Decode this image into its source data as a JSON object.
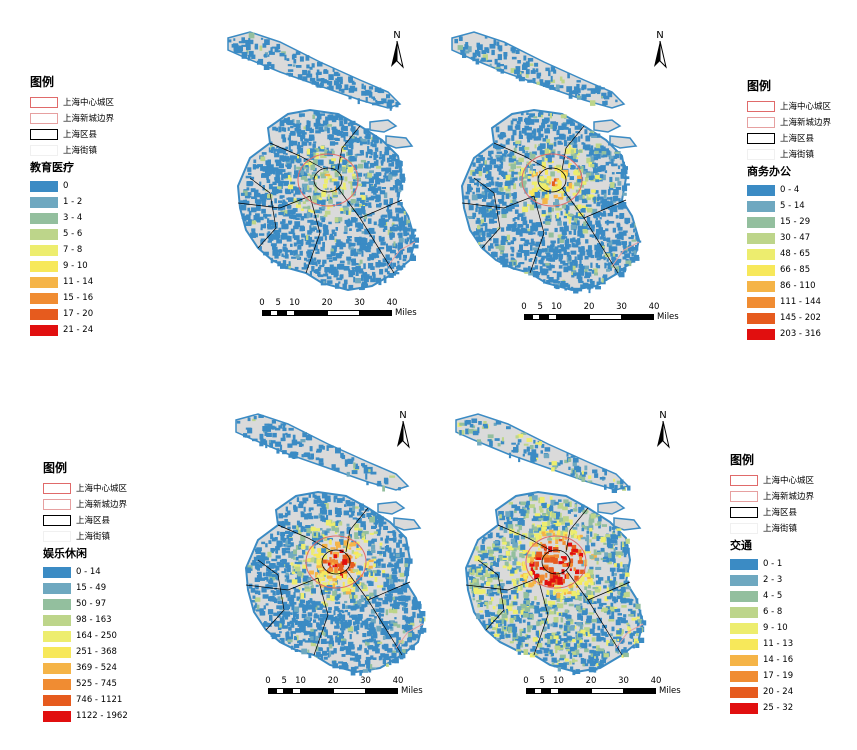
{
  "map_panels": [
    {
      "id": "education",
      "legend_title": "图例",
      "boundary_items": [
        "上海中心城区",
        "上海新城边界",
        "上海区县",
        "上海街镇"
      ],
      "layer_title": "教育医疗",
      "classes": [
        "0",
        "1 - 2",
        "3 - 4",
        "5 - 6",
        "7 - 8",
        "9 - 10",
        "11 - 14",
        "15 - 16",
        "17 - 20",
        "21 - 24"
      ],
      "north_label": "N",
      "scale_ticks": [
        "0",
        "5",
        "10",
        "20",
        "30",
        "40"
      ],
      "scale_unit": "Miles"
    },
    {
      "id": "business",
      "legend_title": "图例",
      "boundary_items": [
        "上海中心城区",
        "上海新城边界",
        "上海区县",
        "上海街镇"
      ],
      "layer_title": "商务办公",
      "classes": [
        "0 - 4",
        "5 - 14",
        "15 - 29",
        "30 - 47",
        "48 - 65",
        "66 - 85",
        "86 - 110",
        "111 - 144",
        "145 - 202",
        "203 - 316"
      ],
      "north_label": "N",
      "scale_ticks": [
        "0",
        "5",
        "10",
        "20",
        "30",
        "40"
      ],
      "scale_unit": "Miles"
    },
    {
      "id": "leisure",
      "legend_title": "图例",
      "boundary_items": [
        "上海中心城区",
        "上海新城边界",
        "上海区县",
        "上海街镇"
      ],
      "layer_title": "娱乐休闲",
      "classes": [
        "0 - 14",
        "15 - 49",
        "50 - 97",
        "98 - 163",
        "164 - 250",
        "251 - 368",
        "369 - 524",
        "525 - 745",
        "746 - 1121",
        "1122 - 1962"
      ],
      "north_label": "N",
      "scale_ticks": [
        "0",
        "5",
        "10",
        "20",
        "30",
        "40"
      ],
      "scale_unit": "Miles"
    },
    {
      "id": "transport",
      "legend_title": "图例",
      "boundary_items": [
        "上海中心城区",
        "上海新城边界",
        "上海区县",
        "上海街镇"
      ],
      "layer_title": "交通",
      "classes": [
        "0 - 1",
        "2 - 3",
        "4 - 5",
        "6 - 8",
        "9 - 10",
        "11 - 13",
        "14 - 16",
        "17 - 19",
        "20 - 24",
        "25 - 32"
      ],
      "north_label": "N",
      "scale_ticks": [
        "0",
        "5",
        "10",
        "20",
        "30",
        "40"
      ],
      "scale_unit": "Miles"
    }
  ],
  "colors": {
    "ramp": [
      "#3b8bc4",
      "#6ea8c0",
      "#93bf9e",
      "#bdd58a",
      "#eded6e",
      "#f7e85a",
      "#f5b447",
      "#f08c32",
      "#e65b1e",
      "#e10f0f"
    ],
    "land": "#dadada",
    "water_edge": "#3b8bc4",
    "center_boundary": "#e06a6a",
    "newtown_boundary": "#e6a0a0",
    "district_boundary": "#000000",
    "street_boundary": "#ffffff"
  },
  "intensity_levels": [
    0.55,
    0.8,
    1.0,
    1.35
  ]
}
